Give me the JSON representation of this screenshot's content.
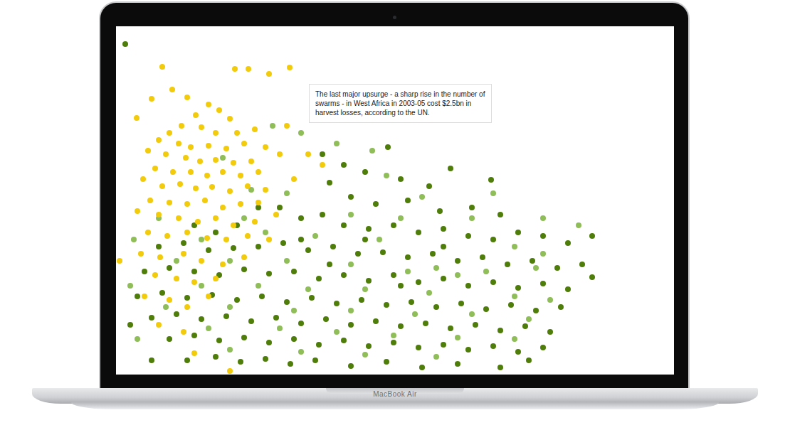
{
  "device": {
    "label": "MacBook Air"
  },
  "chart_data": {
    "type": "scatter",
    "xlim": [
      0,
      784
    ],
    "ylim": [
      490,
      0
    ],
    "tick_labels": false,
    "grid": false,
    "marker": "circle",
    "annotations": [
      {
        "lines": [
          "The last major upsurge - a sharp rise in the number of",
          "swarms - in West Africa in 2003-05 cost $2.5bn in",
          "harvest losses, according to the UN."
        ]
      }
    ],
    "series": [
      {
        "color": "#4f7d0a",
        "points": [
          [
            13,
            25
          ],
          [
            382,
            170
          ],
          [
            527,
            216
          ],
          [
            669,
            295
          ],
          [
            669,
            353
          ],
          [
            290,
            180
          ],
          [
            320,
            195
          ],
          [
            350,
            205
          ],
          [
            400,
            215
          ],
          [
            440,
            225
          ],
          [
            470,
            200
          ],
          [
            300,
            220
          ],
          [
            330,
            240
          ],
          [
            365,
            250
          ],
          [
            410,
            245
          ],
          [
            455,
            260
          ],
          [
            500,
            255
          ],
          [
            540,
            265
          ],
          [
            230,
            255
          ],
          [
            260,
            270
          ],
          [
            290,
            265
          ],
          [
            320,
            280
          ],
          [
            355,
            285
          ],
          [
            390,
            280
          ],
          [
            425,
            290
          ],
          [
            460,
            285
          ],
          [
            495,
            295
          ],
          [
            530,
            300
          ],
          [
            565,
            290
          ],
          [
            600,
            295
          ],
          [
            635,
            305
          ],
          [
            60,
            310
          ],
          [
            95,
            305
          ],
          [
            130,
            315
          ],
          [
            165,
            312
          ],
          [
            200,
            310
          ],
          [
            235,
            305
          ],
          [
            270,
            315
          ],
          [
            305,
            310
          ],
          [
            340,
            320
          ],
          [
            375,
            318
          ],
          [
            410,
            325
          ],
          [
            445,
            320
          ],
          [
            480,
            330
          ],
          [
            515,
            325
          ],
          [
            550,
            335
          ],
          [
            585,
            330
          ],
          [
            620,
            340
          ],
          [
            655,
            335
          ],
          [
            40,
            345
          ],
          [
            75,
            340
          ],
          [
            110,
            345
          ],
          [
            145,
            350
          ],
          [
            180,
            342
          ],
          [
            215,
            348
          ],
          [
            250,
            345
          ],
          [
            285,
            355
          ],
          [
            320,
            350
          ],
          [
            355,
            358
          ],
          [
            390,
            350
          ],
          [
            425,
            360
          ],
          [
            460,
            355
          ],
          [
            495,
            365
          ],
          [
            530,
            360
          ],
          [
            565,
            368
          ],
          [
            600,
            362
          ],
          [
            635,
            370
          ],
          [
            30,
            380
          ],
          [
            65,
            375
          ],
          [
            100,
            382
          ],
          [
            135,
            378
          ],
          [
            170,
            385
          ],
          [
            205,
            380
          ],
          [
            240,
            388
          ],
          [
            275,
            382
          ],
          [
            310,
            390
          ],
          [
            345,
            385
          ],
          [
            380,
            392
          ],
          [
            415,
            388
          ],
          [
            450,
            395
          ],
          [
            485,
            390
          ],
          [
            520,
            398
          ],
          [
            555,
            392
          ],
          [
            590,
            400
          ],
          [
            625,
            395
          ],
          [
            50,
            410
          ],
          [
            85,
            405
          ],
          [
            120,
            412
          ],
          [
            155,
            408
          ],
          [
            190,
            415
          ],
          [
            225,
            410
          ],
          [
            260,
            418
          ],
          [
            295,
            412
          ],
          [
            330,
            420
          ],
          [
            365,
            415
          ],
          [
            400,
            422
          ],
          [
            435,
            418
          ],
          [
            470,
            425
          ],
          [
            505,
            420
          ],
          [
            540,
            428
          ],
          [
            575,
            422
          ],
          [
            610,
            430
          ],
          [
            75,
            440
          ],
          [
            110,
            435
          ],
          [
            145,
            442
          ],
          [
            180,
            438
          ],
          [
            215,
            445
          ],
          [
            250,
            440
          ],
          [
            285,
            448
          ],
          [
            320,
            442
          ],
          [
            355,
            450
          ],
          [
            390,
            445
          ],
          [
            425,
            452
          ],
          [
            460,
            448
          ],
          [
            495,
            455
          ],
          [
            530,
            450
          ],
          [
            565,
            458
          ],
          [
            600,
            452
          ],
          [
            100,
            470
          ],
          [
            140,
            465
          ],
          [
            175,
            472
          ],
          [
            210,
            468
          ],
          [
            245,
            475
          ],
          [
            280,
            470
          ],
          [
            330,
            478
          ],
          [
            380,
            472
          ],
          [
            430,
            480
          ],
          [
            480,
            475
          ],
          [
            540,
            480
          ],
          [
            580,
            470
          ],
          [
            200,
            255
          ],
          [
            170,
            280
          ],
          [
            140,
            290
          ],
          [
            110,
            280
          ],
          [
            20,
            420
          ],
          [
            50,
            470
          ],
          [
            260,
            300
          ],
          [
            350,
            300
          ],
          [
            460,
            310
          ],
          [
            400,
            365
          ],
          [
            300,
            335
          ]
        ]
      },
      {
        "color": "#8fbd58",
        "points": [
          [
            220,
            140
          ],
          [
            260,
            150
          ],
          [
            280,
            130
          ],
          [
            310,
            165
          ],
          [
            150,
            185
          ],
          [
            190,
            230
          ],
          [
            240,
            235
          ],
          [
            380,
            210
          ],
          [
            430,
            240
          ],
          [
            500,
            270
          ],
          [
            330,
            265
          ],
          [
            25,
            300
          ],
          [
            120,
            300
          ],
          [
            210,
            290
          ],
          [
            280,
            295
          ],
          [
            370,
            300
          ],
          [
            450,
            340
          ],
          [
            520,
            345
          ],
          [
            600,
            320
          ],
          [
            560,
            310
          ],
          [
            85,
            330
          ],
          [
            160,
            330
          ],
          [
            240,
            330
          ],
          [
            330,
            335
          ],
          [
            410,
            345
          ],
          [
            480,
            350
          ],
          [
            20,
            365
          ],
          [
            120,
            365
          ],
          [
            200,
            365
          ],
          [
            270,
            370
          ],
          [
            350,
            370
          ],
          [
            440,
            375
          ],
          [
            560,
            380
          ],
          [
            610,
            385
          ],
          [
            70,
            395
          ],
          [
            160,
            395
          ],
          [
            250,
            400
          ],
          [
            330,
            400
          ],
          [
            420,
            405
          ],
          [
            500,
            405
          ],
          [
            580,
            412
          ],
          [
            30,
            440
          ],
          [
            130,
            425
          ],
          [
            230,
            425
          ],
          [
            310,
            430
          ],
          [
            390,
            435
          ],
          [
            480,
            438
          ],
          [
            560,
            440
          ],
          [
            160,
            455
          ],
          [
            260,
            458
          ],
          [
            350,
            462
          ],
          [
            450,
            465
          ],
          [
            600,
            270
          ],
          [
            650,
            280
          ],
          [
            360,
            175
          ],
          [
            180,
            270
          ],
          [
            60,
            270
          ],
          [
            400,
            270
          ],
          [
            530,
            235
          ],
          [
            590,
            340
          ]
        ]
      },
      {
        "color": "#f2cb0c",
        "points": [
          [
            65,
            57
          ],
          [
            167,
            60
          ],
          [
            186,
            60
          ],
          [
            215,
            67
          ],
          [
            244,
            58
          ],
          [
            79,
            89
          ],
          [
            50,
            102
          ],
          [
            29,
            129
          ],
          [
            100,
            100
          ],
          [
            130,
            110
          ],
          [
            112,
            125
          ],
          [
            145,
            118
          ],
          [
            160,
            130
          ],
          [
            92,
            140
          ],
          [
            120,
            142
          ],
          [
            75,
            150
          ],
          [
            140,
            150
          ],
          [
            170,
            150
          ],
          [
            195,
            145
          ],
          [
            60,
            160
          ],
          [
            88,
            165
          ],
          [
            105,
            170
          ],
          [
            130,
            168
          ],
          [
            155,
            172
          ],
          [
            180,
            165
          ],
          [
            210,
            170
          ],
          [
            45,
            175
          ],
          [
            70,
            180
          ],
          [
            98,
            185
          ],
          [
            118,
            190
          ],
          [
            140,
            188
          ],
          [
            165,
            192
          ],
          [
            190,
            190
          ],
          [
            230,
            180
          ],
          [
            55,
            200
          ],
          [
            80,
            205
          ],
          [
            105,
            205
          ],
          [
            128,
            210
          ],
          [
            150,
            205
          ],
          [
            175,
            210
          ],
          [
            200,
            205
          ],
          [
            38,
            215
          ],
          [
            65,
            225
          ],
          [
            90,
            222
          ],
          [
            112,
            228
          ],
          [
            135,
            226
          ],
          [
            160,
            232
          ],
          [
            185,
            225
          ],
          [
            210,
            230
          ],
          [
            250,
            215
          ],
          [
            48,
            245
          ],
          [
            75,
            248
          ],
          [
            100,
            250
          ],
          [
            125,
            245
          ],
          [
            150,
            255
          ],
          [
            175,
            250
          ],
          [
            200,
            248
          ],
          [
            30,
            260
          ],
          [
            60,
            265
          ],
          [
            88,
            270
          ],
          [
            115,
            275
          ],
          [
            140,
            270
          ],
          [
            165,
            280
          ],
          [
            195,
            275
          ],
          [
            225,
            265
          ],
          [
            45,
            290
          ],
          [
            72,
            295
          ],
          [
            100,
            290
          ],
          [
            128,
            298
          ],
          [
            155,
            300
          ],
          [
            185,
            295
          ],
          [
            215,
            300
          ],
          [
            35,
            320
          ],
          [
            62,
            325
          ],
          [
            95,
            320
          ],
          [
            120,
            330
          ],
          [
            150,
            335
          ],
          [
            180,
            325
          ],
          [
            55,
            350
          ],
          [
            85,
            355
          ],
          [
            110,
            360
          ],
          [
            140,
            355
          ],
          [
            40,
            380
          ],
          [
            75,
            385
          ],
          [
            100,
            395
          ],
          [
            130,
            380
          ],
          [
            60,
            420
          ],
          [
            95,
            430
          ],
          [
            110,
            460
          ],
          [
            160,
            485
          ],
          [
            270,
            180
          ],
          [
            290,
            195
          ],
          [
            240,
            140
          ],
          [
            5,
            330
          ]
        ]
      }
    ]
  }
}
